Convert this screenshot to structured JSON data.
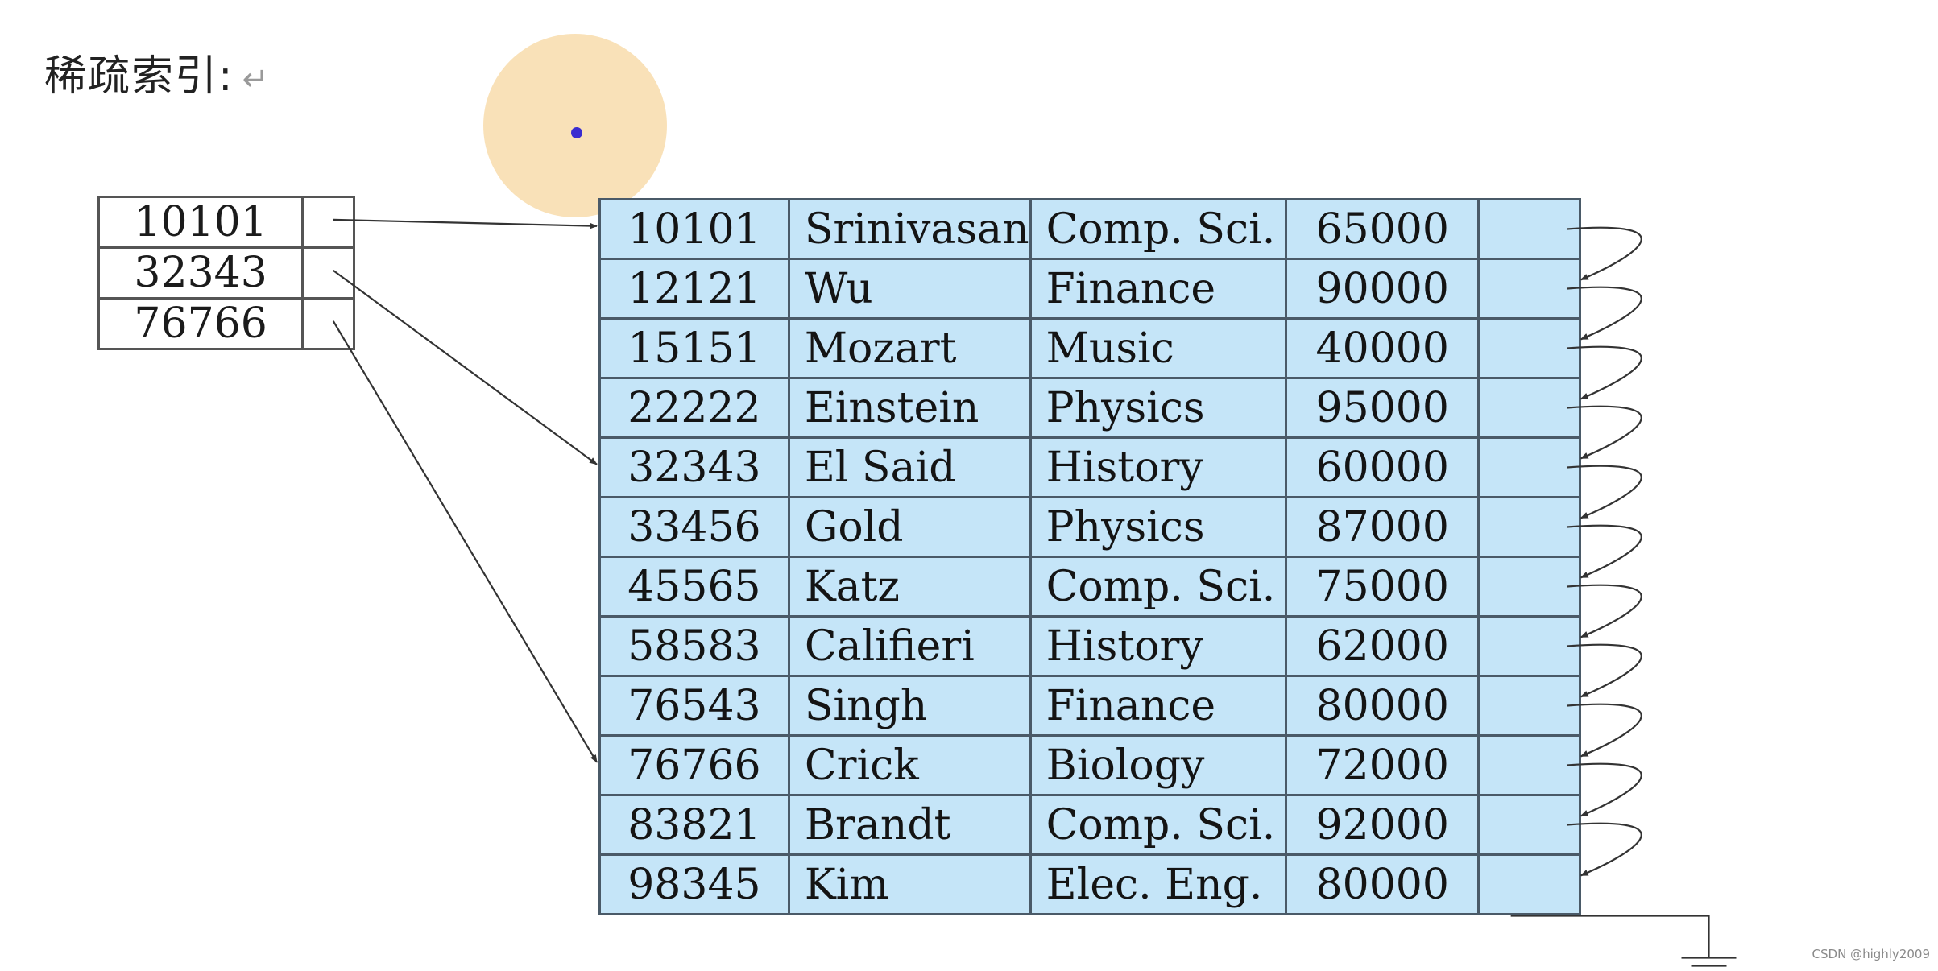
{
  "heading": {
    "title": "稀疏索引:",
    "return_mark": "↵"
  },
  "index": [
    {
      "key": "10101"
    },
    {
      "key": "32343"
    },
    {
      "key": "76766"
    }
  ],
  "records": [
    {
      "id": "10101",
      "name": "Srinivasan",
      "dept": "Comp. Sci.",
      "salary": "65000"
    },
    {
      "id": "12121",
      "name": "Wu",
      "dept": "Finance",
      "salary": "90000"
    },
    {
      "id": "15151",
      "name": "Mozart",
      "dept": "Music",
      "salary": "40000"
    },
    {
      "id": "22222",
      "name": "Einstein",
      "dept": "Physics",
      "salary": "95000"
    },
    {
      "id": "32343",
      "name": "El Said",
      "dept": "History",
      "salary": "60000"
    },
    {
      "id": "33456",
      "name": "Gold",
      "dept": "Physics",
      "salary": "87000"
    },
    {
      "id": "45565",
      "name": "Katz",
      "dept": "Comp. Sci.",
      "salary": "75000"
    },
    {
      "id": "58583",
      "name": "Califieri",
      "dept": "History",
      "salary": "62000"
    },
    {
      "id": "76543",
      "name": "Singh",
      "dept": "Finance",
      "salary": "80000"
    },
    {
      "id": "76766",
      "name": "Crick",
      "dept": "Biology",
      "salary": "72000"
    },
    {
      "id": "83821",
      "name": "Brandt",
      "dept": "Comp. Sci.",
      "salary": "92000"
    },
    {
      "id": "98345",
      "name": "Kim",
      "dept": "Elec. Eng.",
      "salary": "80000"
    }
  ],
  "credit": "CSDN @highly2009",
  "colors": {
    "record_fill": "#c5e5f8",
    "line": "#333333",
    "cursor_halo": "#f6ce8c",
    "cursor_dot": "#3a2cd0"
  }
}
